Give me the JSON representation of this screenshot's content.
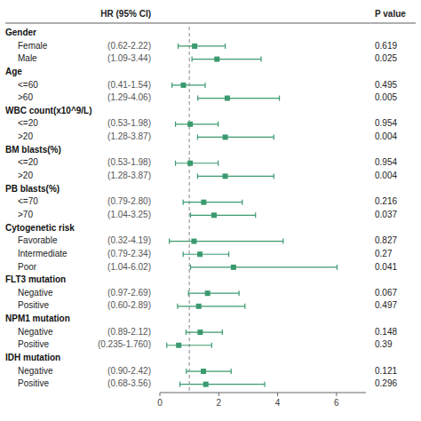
{
  "chart_data": {
    "type": "forest",
    "ci_header": "HR (95% CI)",
    "p_header": "P value",
    "xlim": [
      0,
      7
    ],
    "xticks": [
      0,
      2,
      4,
      6
    ],
    "ref_line": 1.0,
    "color": "#3a9a6e",
    "groups": [
      {
        "name": "Gender",
        "rows": [
          {
            "label": "Female",
            "hr": 1.18,
            "lo": 0.62,
            "hi": 2.22,
            "ci_label": "(0.62-2.22)",
            "p": 0.619
          },
          {
            "label": "Male",
            "hr": 1.94,
            "lo": 1.09,
            "hi": 3.44,
            "ci_label": "(1.09-3.44)",
            "p": 0.025
          }
        ]
      },
      {
        "name": "Age",
        "rows": [
          {
            "label": "<=60",
            "hr": 0.8,
            "lo": 0.41,
            "hi": 1.54,
            "ci_label": "(0.41-1.54)",
            "p": 0.495
          },
          {
            "label": ">60",
            "hr": 2.29,
            "lo": 1.29,
            "hi": 4.06,
            "ci_label": "(1.29-4.06)",
            "p": 0.005
          }
        ]
      },
      {
        "name": "WBC count(x10^9/L)",
        "rows": [
          {
            "label": "<=20",
            "hr": 1.03,
            "lo": 0.53,
            "hi": 1.98,
            "ci_label": "(0.53-1.98)",
            "p": 0.954
          },
          {
            "label": ">20",
            "hr": 2.22,
            "lo": 1.28,
            "hi": 3.87,
            "ci_label": "(1.28-3.87)",
            "p": 0.004
          }
        ]
      },
      {
        "name": "BM blasts(%)",
        "rows": [
          {
            "label": "<=20",
            "hr": 1.03,
            "lo": 0.53,
            "hi": 1.98,
            "ci_label": "(0.53-1.98)",
            "p": 0.954
          },
          {
            "label": ">20",
            "hr": 2.22,
            "lo": 1.28,
            "hi": 3.87,
            "ci_label": "(1.28-3.87)",
            "p": 0.004
          }
        ]
      },
      {
        "name": "PB blasts(%)",
        "rows": [
          {
            "label": "<=70",
            "hr": 1.49,
            "lo": 0.79,
            "hi": 2.8,
            "ci_label": "(0.79-2.80)",
            "p": 0.216
          },
          {
            "label": ">70",
            "hr": 1.84,
            "lo": 1.04,
            "hi": 3.25,
            "ci_label": "(1.04-3.25)",
            "p": 0.037
          }
        ]
      },
      {
        "name": "Cytogenetic risk",
        "rows": [
          {
            "label": "Favorable",
            "hr": 1.16,
            "lo": 0.32,
            "hi": 4.19,
            "ci_label": "(0.32-4.19)",
            "p": 0.827
          },
          {
            "label": "Intermediate",
            "hr": 1.36,
            "lo": 0.79,
            "hi": 2.34,
            "ci_label": "(0.79-2.34)",
            "p": 0.27
          },
          {
            "label": "Poor",
            "hr": 2.5,
            "lo": 1.04,
            "hi": 6.02,
            "ci_label": "(1.04-6.02)",
            "p": 0.041
          }
        ]
      },
      {
        "name": "FLT3 mutation",
        "rows": [
          {
            "label": "Negative",
            "hr": 1.62,
            "lo": 0.97,
            "hi": 2.69,
            "ci_label": "(0.97-2.69)",
            "p": 0.067
          },
          {
            "label": "Positive",
            "hr": 1.32,
            "lo": 0.6,
            "hi": 2.89,
            "ci_label": "(0.60-2.89)",
            "p": 0.497
          }
        ]
      },
      {
        "name": "NPM1 mutation",
        "rows": [
          {
            "label": "Negative",
            "hr": 1.37,
            "lo": 0.89,
            "hi": 2.12,
            "ci_label": "(0.89-2.12)",
            "p": 0.148
          },
          {
            "label": "Positive",
            "hr": 0.64,
            "lo": 0.235,
            "hi": 1.76,
            "ci_label": "(0.235-1.760)",
            "p": 0.39
          }
        ]
      },
      {
        "name": "IDH mutation",
        "rows": [
          {
            "label": "Negative",
            "hr": 1.48,
            "lo": 0.9,
            "hi": 2.42,
            "ci_label": "(0.90-2.42)",
            "p": 0.121
          },
          {
            "label": "Positive",
            "hr": 1.56,
            "lo": 0.68,
            "hi": 3.56,
            "ci_label": "(0.68-3.56)",
            "p": 0.296
          }
        ]
      }
    ]
  }
}
